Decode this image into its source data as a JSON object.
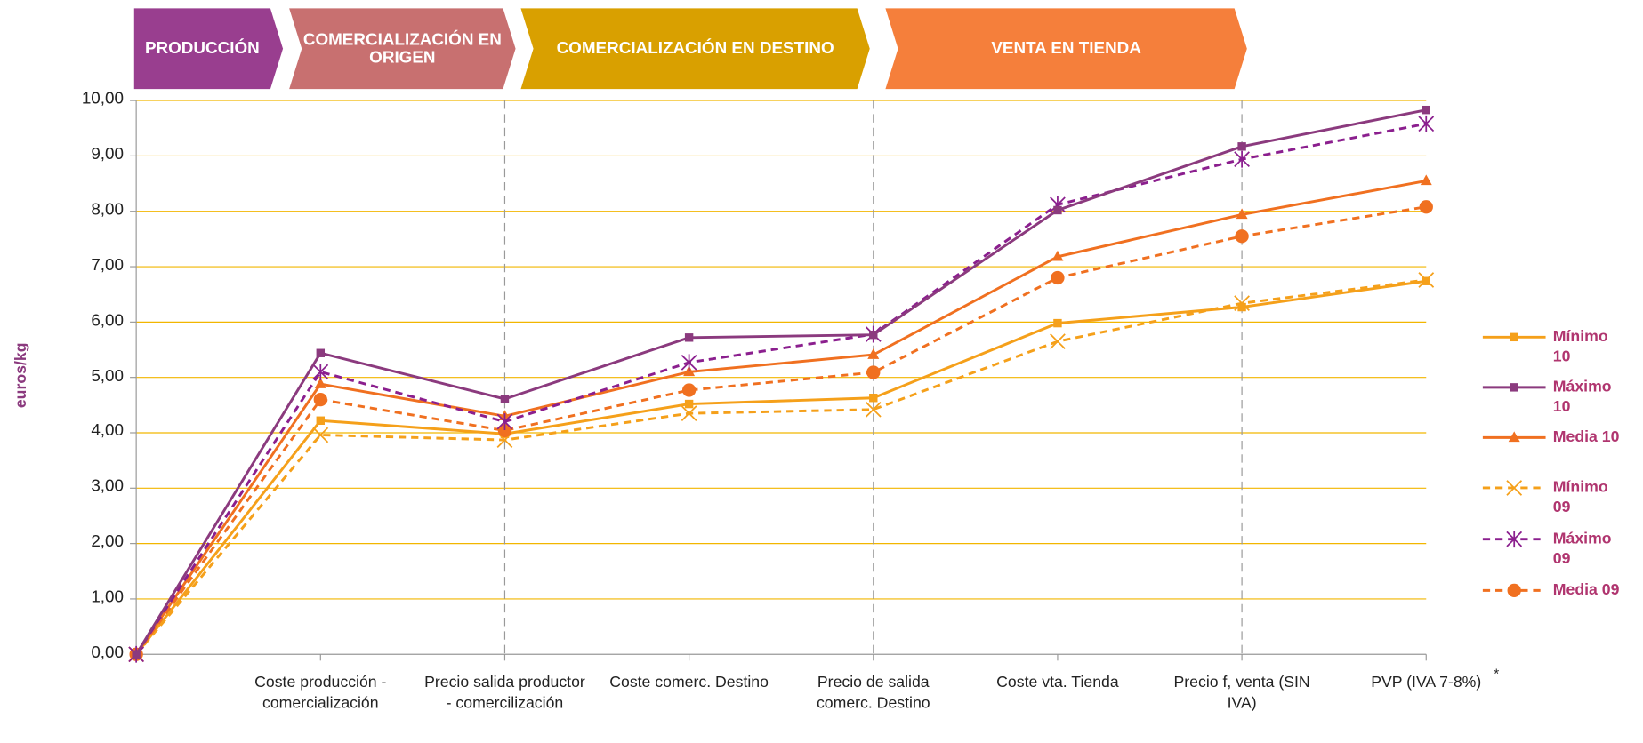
{
  "chart_data": {
    "type": "line",
    "y_label": "euros/kg",
    "stages": [
      "PRODUCCIÓN",
      "COMERCIALIZACIÓN EN ORIGEN",
      "COMERCIALIZACIÓN EN DESTINO",
      "VENTA EN TIENDA"
    ],
    "stage_colors": [
      "#993e8f",
      "#c87070",
      "#d9a000",
      "#f57f3b"
    ],
    "categories": [
      null,
      "Coste producción - comercialización",
      "Precio salida productor - comercilización",
      "Coste comerc. Destino",
      "Precio de salida comerc. Destino",
      "Coste vta. Tienda",
      "Precio f, venta (SIN IVA)",
      "PVP (IVA 7-8%)"
    ],
    "footnote_mark": "*",
    "ylim": [
      0,
      10
    ],
    "yticks": [
      {
        "value": 0,
        "label": "0,00"
      },
      {
        "value": 1,
        "label": "1,00"
      },
      {
        "value": 2,
        "label": "2,00"
      },
      {
        "value": 3,
        "label": "3,00"
      },
      {
        "value": 4,
        "label": "4,00"
      },
      {
        "value": 5,
        "label": "5,00"
      },
      {
        "value": 6,
        "label": "6,00"
      },
      {
        "value": 7,
        "label": "7,00"
      },
      {
        "value": 8,
        "label": "8,00"
      },
      {
        "value": 9,
        "label": "9,00"
      },
      {
        "value": 10,
        "label": "10,00"
      }
    ],
    "grid": true,
    "legend": "right",
    "series": [
      {
        "name": "Mínimo 10",
        "color": "#f5a01a",
        "marker": "square",
        "dashed": false,
        "values": [
          0,
          4.22,
          3.98,
          4.52,
          4.63,
          5.98,
          6.27,
          6.74
        ]
      },
      {
        "name": "Máximo 10",
        "color": "#8b3a7e",
        "marker": "square",
        "dashed": false,
        "values": [
          0,
          5.44,
          4.61,
          5.72,
          5.77,
          8.02,
          9.17,
          9.83
        ]
      },
      {
        "name": "Media 10",
        "color": "#f07020",
        "marker": "triangle",
        "dashed": false,
        "values": [
          0,
          4.88,
          4.3,
          5.1,
          5.41,
          7.18,
          7.94,
          8.55
        ]
      },
      {
        "name": "Mínimo 09",
        "color": "#f5a01a",
        "marker": "x",
        "dashed": true,
        "values": [
          0,
          3.96,
          3.87,
          4.35,
          4.42,
          5.65,
          6.34,
          6.76
        ]
      },
      {
        "name": "Máximo 09",
        "color": "#8b1f8e",
        "marker": "star",
        "dashed": true,
        "values": [
          0,
          5.1,
          4.2,
          5.27,
          5.78,
          8.12,
          8.94,
          9.58
        ]
      },
      {
        "name": "Media 09",
        "color": "#f07020",
        "marker": "circle",
        "dashed": true,
        "values": [
          0,
          4.6,
          4.04,
          4.77,
          5.09,
          6.8,
          7.55,
          8.08
        ]
      }
    ]
  }
}
